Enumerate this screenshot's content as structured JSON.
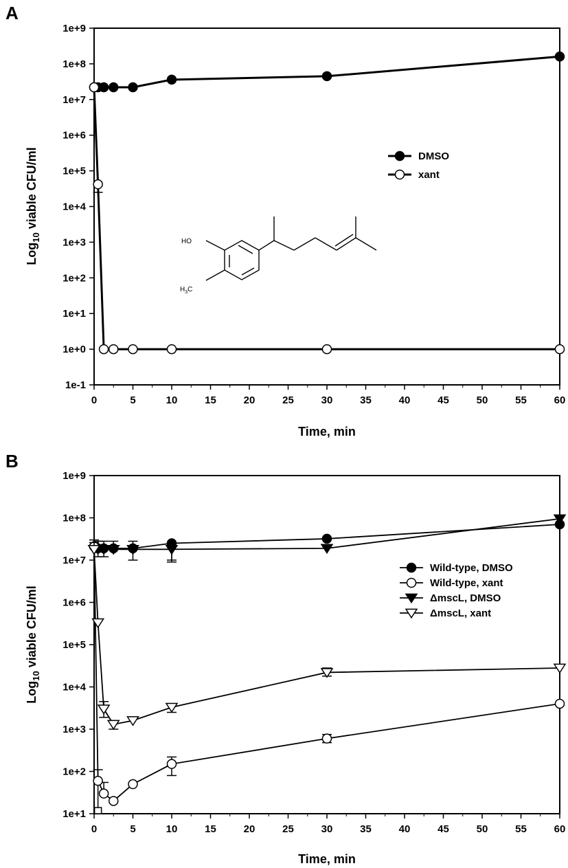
{
  "chart_data": [
    {
      "panel": "A",
      "type": "line",
      "xlabel": "Time, min",
      "ylabel_prefix": "Log",
      "ylabel_sub": "10",
      "ylabel_rest": " viable CFU/ml",
      "yscale": "log",
      "xlim": [
        0,
        60
      ],
      "ylim": [
        0.1,
        1000000000.0
      ],
      "xticks": [
        "0",
        "5",
        "10",
        "15",
        "20",
        "25",
        "30",
        "35",
        "40",
        "45",
        "50",
        "55",
        "60"
      ],
      "yticks": [
        "1e-1",
        "1e+0",
        "1e+1",
        "1e+2",
        "1e+3",
        "1e+4",
        "1e+5",
        "1e+6",
        "1e+7",
        "1e+8",
        "1e+9"
      ],
      "legend_position": "center-right",
      "series": [
        {
          "name": "DMSO",
          "marker": "filled-circle",
          "x": [
            0,
            0.5,
            1.25,
            2.5,
            5,
            10,
            30,
            60
          ],
          "y": [
            22000000.0,
            22000000.0,
            22000000.0,
            22000000.0,
            22000000.0,
            36000000.0,
            45000000.0,
            160000000.0
          ]
        },
        {
          "name": "xant",
          "marker": "open-circle",
          "x": [
            0,
            0.5,
            1.25,
            2.5,
            5,
            10,
            30,
            60
          ],
          "y": [
            22000000.0,
            42000.0,
            1,
            1,
            1,
            1,
            1,
            1
          ],
          "err_low": [
            null,
            25000.0,
            null,
            null,
            null,
            null,
            null,
            null
          ]
        }
      ],
      "structure_labels": {
        "oh": "HO",
        "methyl_h": "H",
        "methyl_sub": "3",
        "methyl_c": "C"
      }
    },
    {
      "panel": "B",
      "type": "line",
      "xlabel": "Time, min",
      "ylabel_prefix": "Log",
      "ylabel_sub": "10",
      "ylabel_rest": " viable CFU/ml",
      "yscale": "log",
      "xlim": [
        0,
        60
      ],
      "ylim": [
        10,
        1000000000.0
      ],
      "xticks": [
        "0",
        "5",
        "10",
        "15",
        "20",
        "25",
        "30",
        "35",
        "40",
        "45",
        "50",
        "55",
        "60"
      ],
      "yticks": [
        "1e+1",
        "1e+2",
        "1e+3",
        "1e+4",
        "1e+5",
        "1e+6",
        "1e+7",
        "1e+8",
        "1e+9"
      ],
      "legend_position": "center-right",
      "series": [
        {
          "name": "Wild-type, DMSO",
          "marker": "filled-circle",
          "x": [
            0,
            0.5,
            1.25,
            2.5,
            5,
            10,
            30,
            60
          ],
          "y": [
            21000000.0,
            19000000.0,
            19000000.0,
            19000000.0,
            19000000.0,
            25000000.0,
            32000000.0,
            70000000.0
          ],
          "err_high": [
            30000000.0,
            28000000.0,
            28000000.0,
            28000000.0,
            28000000.0,
            null,
            null,
            null
          ],
          "err_low": [
            null,
            null,
            null,
            null,
            10000000.0,
            10000000.0,
            null,
            null
          ]
        },
        {
          "name": "Wild-type, xant",
          "marker": "open-circle",
          "x": [
            0,
            0.5,
            1.25,
            2.5,
            5,
            10,
            30,
            60
          ],
          "y": [
            21000000.0,
            60,
            30,
            20,
            50,
            150,
            600,
            4000
          ],
          "err_high": [
            null,
            110,
            55,
            null,
            null,
            220,
            750,
            null
          ],
          "err_low": [
            null,
            10,
            null,
            null,
            null,
            80,
            480,
            null
          ]
        },
        {
          "name": "ΔmscL, DMSO",
          "marker": "filled-triangle-down",
          "x": [
            0,
            0.5,
            1.25,
            2.5,
            5,
            10,
            30,
            60
          ],
          "y": [
            18000000.0,
            18000000.0,
            18000000.0,
            18000000.0,
            18000000.0,
            18000000.0,
            19000000.0,
            95000000.0
          ],
          "err_high": [
            26000000.0,
            null,
            null,
            null,
            null,
            null,
            null,
            null
          ],
          "err_low": [
            null,
            12000000.0,
            12000000.0,
            null,
            null,
            9000000.0,
            null,
            null
          ]
        },
        {
          "name": "ΔmscL, xant",
          "marker": "open-triangle-down",
          "x": [
            0,
            0.5,
            1.25,
            2.5,
            5,
            10,
            30,
            60
          ],
          "y": [
            18000000.0,
            330000.0,
            3000.0,
            1300.0,
            1600.0,
            3300.0,
            22000.0,
            28000.0
          ],
          "err_high": [
            null,
            null,
            4500.0,
            1600.0,
            null,
            4000.0,
            28000.0,
            null
          ],
          "err_low": [
            null,
            null,
            1900.0,
            1000.0,
            null,
            2500.0,
            18000.0,
            null
          ]
        }
      ],
      "extra_marker": {
        "marker": "open-square",
        "x": 0.5,
        "y": 10
      }
    }
  ]
}
